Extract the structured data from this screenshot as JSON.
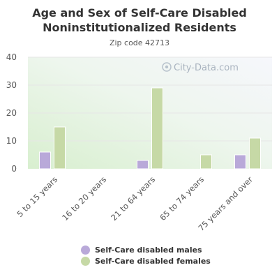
{
  "chart_data": {
    "type": "bar",
    "title": "Age and Sex of Self-Care Disabled Noninstitutionalized Residents",
    "subtitle": "Zip code 42713",
    "categories": [
      "5 to 15 years",
      "16 to 20 years",
      "21 to 64 years",
      "65 to 74 years",
      "75 years and over"
    ],
    "series": [
      {
        "name": "Self-Care disabled males",
        "color": "#b9a9d9",
        "values": [
          6,
          0,
          3,
          0,
          5
        ]
      },
      {
        "name": "Self-Care disabled females",
        "color": "#c6d9a6",
        "values": [
          15,
          0,
          29,
          5,
          11
        ]
      }
    ],
    "ylim": [
      0,
      40
    ],
    "yticks": [
      0,
      10,
      20,
      30,
      40
    ],
    "grid": true,
    "legend_position": "bottom",
    "watermark": "City-Data.com"
  }
}
